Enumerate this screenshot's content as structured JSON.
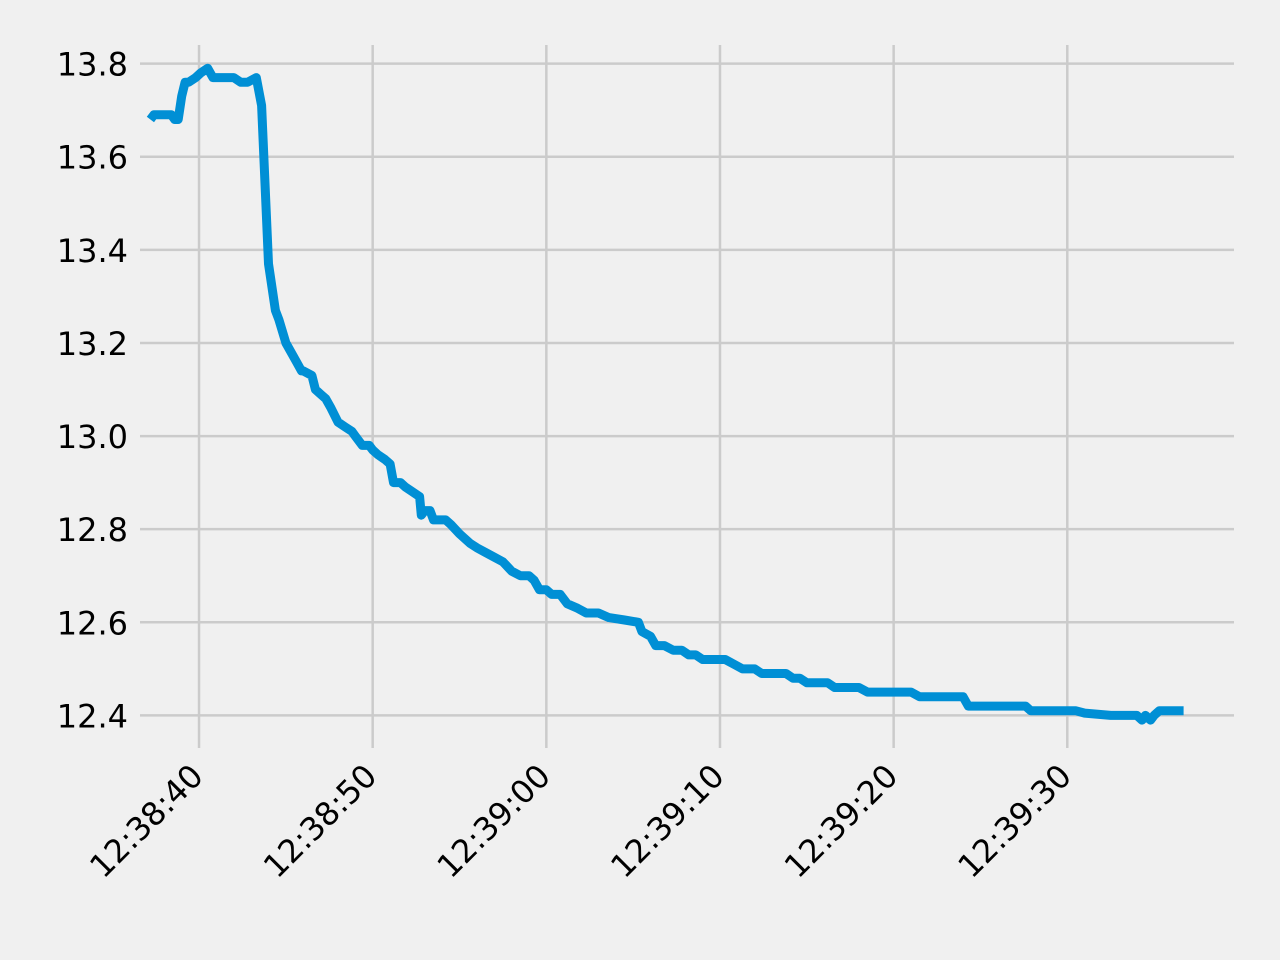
{
  "chart_data": {
    "type": "line",
    "title": "",
    "xlabel": "",
    "ylabel": "",
    "x_tick_labels": [
      "12:38:40",
      "12:38:50",
      "12:39:00",
      "12:39:10",
      "12:39:20",
      "12:39:30"
    ],
    "y_tick_labels": [
      "12.4",
      "12.6",
      "12.8",
      "13.0",
      "13.2",
      "13.4",
      "13.6",
      "13.8"
    ],
    "xlim": [
      "12:38:36.6",
      "12:39:39.6"
    ],
    "ylim": [
      12.33,
      13.84
    ],
    "grid": true,
    "series": [
      {
        "color": "#008fd5",
        "x": [
          "12:38:37.2",
          "12:38:37.4",
          "12:38:37.6",
          "12:38:38.0",
          "12:38:38.4",
          "12:38:38.6",
          "12:38:38.8",
          "12:38:39.0",
          "12:38:39.2",
          "12:38:39.4",
          "12:38:39.8",
          "12:38:40.1",
          "12:38:40.5",
          "12:38:40.8",
          "12:38:41.3",
          "12:38:42.0",
          "12:38:42.4",
          "12:38:42.8",
          "12:38:43.3",
          "12:38:43.6",
          "12:38:44.0",
          "12:38:44.4",
          "12:38:44.6",
          "12:38:45.0",
          "12:38:45.6",
          "12:38:45.9",
          "12:38:46.0",
          "12:38:46.5",
          "12:38:46.7",
          "12:38:47.0",
          "12:38:47.3",
          "12:38:47.6",
          "12:38:48.0",
          "12:38:48.4",
          "12:38:48.8",
          "12:38:49.0",
          "12:38:49.4",
          "12:38:49.8",
          "12:38:50.0",
          "12:38:50.3",
          "12:38:50.7",
          "12:38:51.0",
          "12:38:51.2",
          "12:38:51.6",
          "12:38:51.9",
          "12:38:52.3",
          "12:38:52.7",
          "12:38:52.8",
          "12:38:53.0",
          "12:38:53.3",
          "12:38:53.5",
          "12:38:54.2",
          "12:38:54.5",
          "12:38:55.0",
          "12:38:55.6",
          "12:38:56.0",
          "12:38:56.5",
          "12:38:57.0",
          "12:38:57.5",
          "12:38:58.0",
          "12:38:58.5",
          "12:38:59.0",
          "12:38:59.3",
          "12:38:59.6",
          "12:39:00.0",
          "12:39:00.3",
          "12:39:00.8",
          "12:39:01.2",
          "12:39:01.8",
          "12:39:02.3",
          "12:39:03.0",
          "12:39:03.6",
          "12:39:04.5",
          "12:39:05.3",
          "12:39:05.5",
          "12:39:06.0",
          "12:39:06.3",
          "12:39:06.8",
          "12:39:07.3",
          "12:39:07.8",
          "12:39:08.2",
          "12:39:08.6",
          "12:39:09.0",
          "12:39:09.5",
          "12:39:10.0",
          "12:39:10.3",
          "12:39:10.8",
          "12:39:11.3",
          "12:39:12.0",
          "12:39:12.4",
          "12:39:13.0",
          "12:39:13.8",
          "12:39:14.2",
          "12:39:14.6",
          "12:39:15.0",
          "12:39:15.6",
          "12:39:16.2",
          "12:39:16.6",
          "12:39:17.3",
          "12:39:18.0",
          "12:39:18.5",
          "12:39:19.0",
          "12:39:20.0",
          "12:39:21.0",
          "12:39:21.5",
          "12:39:22.3",
          "12:39:23.3",
          "12:39:24.0",
          "12:39:24.3",
          "12:39:25.3",
          "12:39:26.5",
          "12:39:27.6",
          "12:39:27.9",
          "12:39:28.6",
          "12:39:29.5",
          "12:39:30.5",
          "12:39:31.0",
          "12:39:32.5",
          "12:39:34.0",
          "12:39:34.3",
          "12:39:34.5",
          "12:39:34.8",
          "12:39:35.0",
          "12:39:35.3",
          "12:39:36.7"
        ],
        "y": [
          13.68,
          13.69,
          13.69,
          13.69,
          13.69,
          13.68,
          13.68,
          13.73,
          13.76,
          13.76,
          13.77,
          13.78,
          13.79,
          13.77,
          13.77,
          13.77,
          13.76,
          13.76,
          13.77,
          13.71,
          13.37,
          13.27,
          13.25,
          13.2,
          13.16,
          13.14,
          13.14,
          13.13,
          13.1,
          13.09,
          13.08,
          13.06,
          13.03,
          13.02,
          13.01,
          13.0,
          12.98,
          12.98,
          12.97,
          12.96,
          12.95,
          12.94,
          12.9,
          12.9,
          12.89,
          12.88,
          12.87,
          12.83,
          12.84,
          12.84,
          12.82,
          12.82,
          12.81,
          12.79,
          12.77,
          12.76,
          12.75,
          12.74,
          12.73,
          12.71,
          12.7,
          12.7,
          12.69,
          12.67,
          12.67,
          12.66,
          12.66,
          12.64,
          12.63,
          12.62,
          12.62,
          12.61,
          12.605,
          12.6,
          12.58,
          12.57,
          12.55,
          12.55,
          12.54,
          12.54,
          12.53,
          12.53,
          12.52,
          12.52,
          12.52,
          12.52,
          12.51,
          12.5,
          12.5,
          12.49,
          12.49,
          12.49,
          12.48,
          12.48,
          12.47,
          12.47,
          12.47,
          12.46,
          12.46,
          12.46,
          12.45,
          12.45,
          12.45,
          12.45,
          12.44,
          12.44,
          12.44,
          12.44,
          12.42,
          12.42,
          12.42,
          12.42,
          12.41,
          12.41,
          12.41,
          12.41,
          12.405,
          12.4,
          12.4,
          12.39,
          12.4,
          12.39,
          12.4,
          12.41,
          12.41
        ]
      }
    ]
  }
}
